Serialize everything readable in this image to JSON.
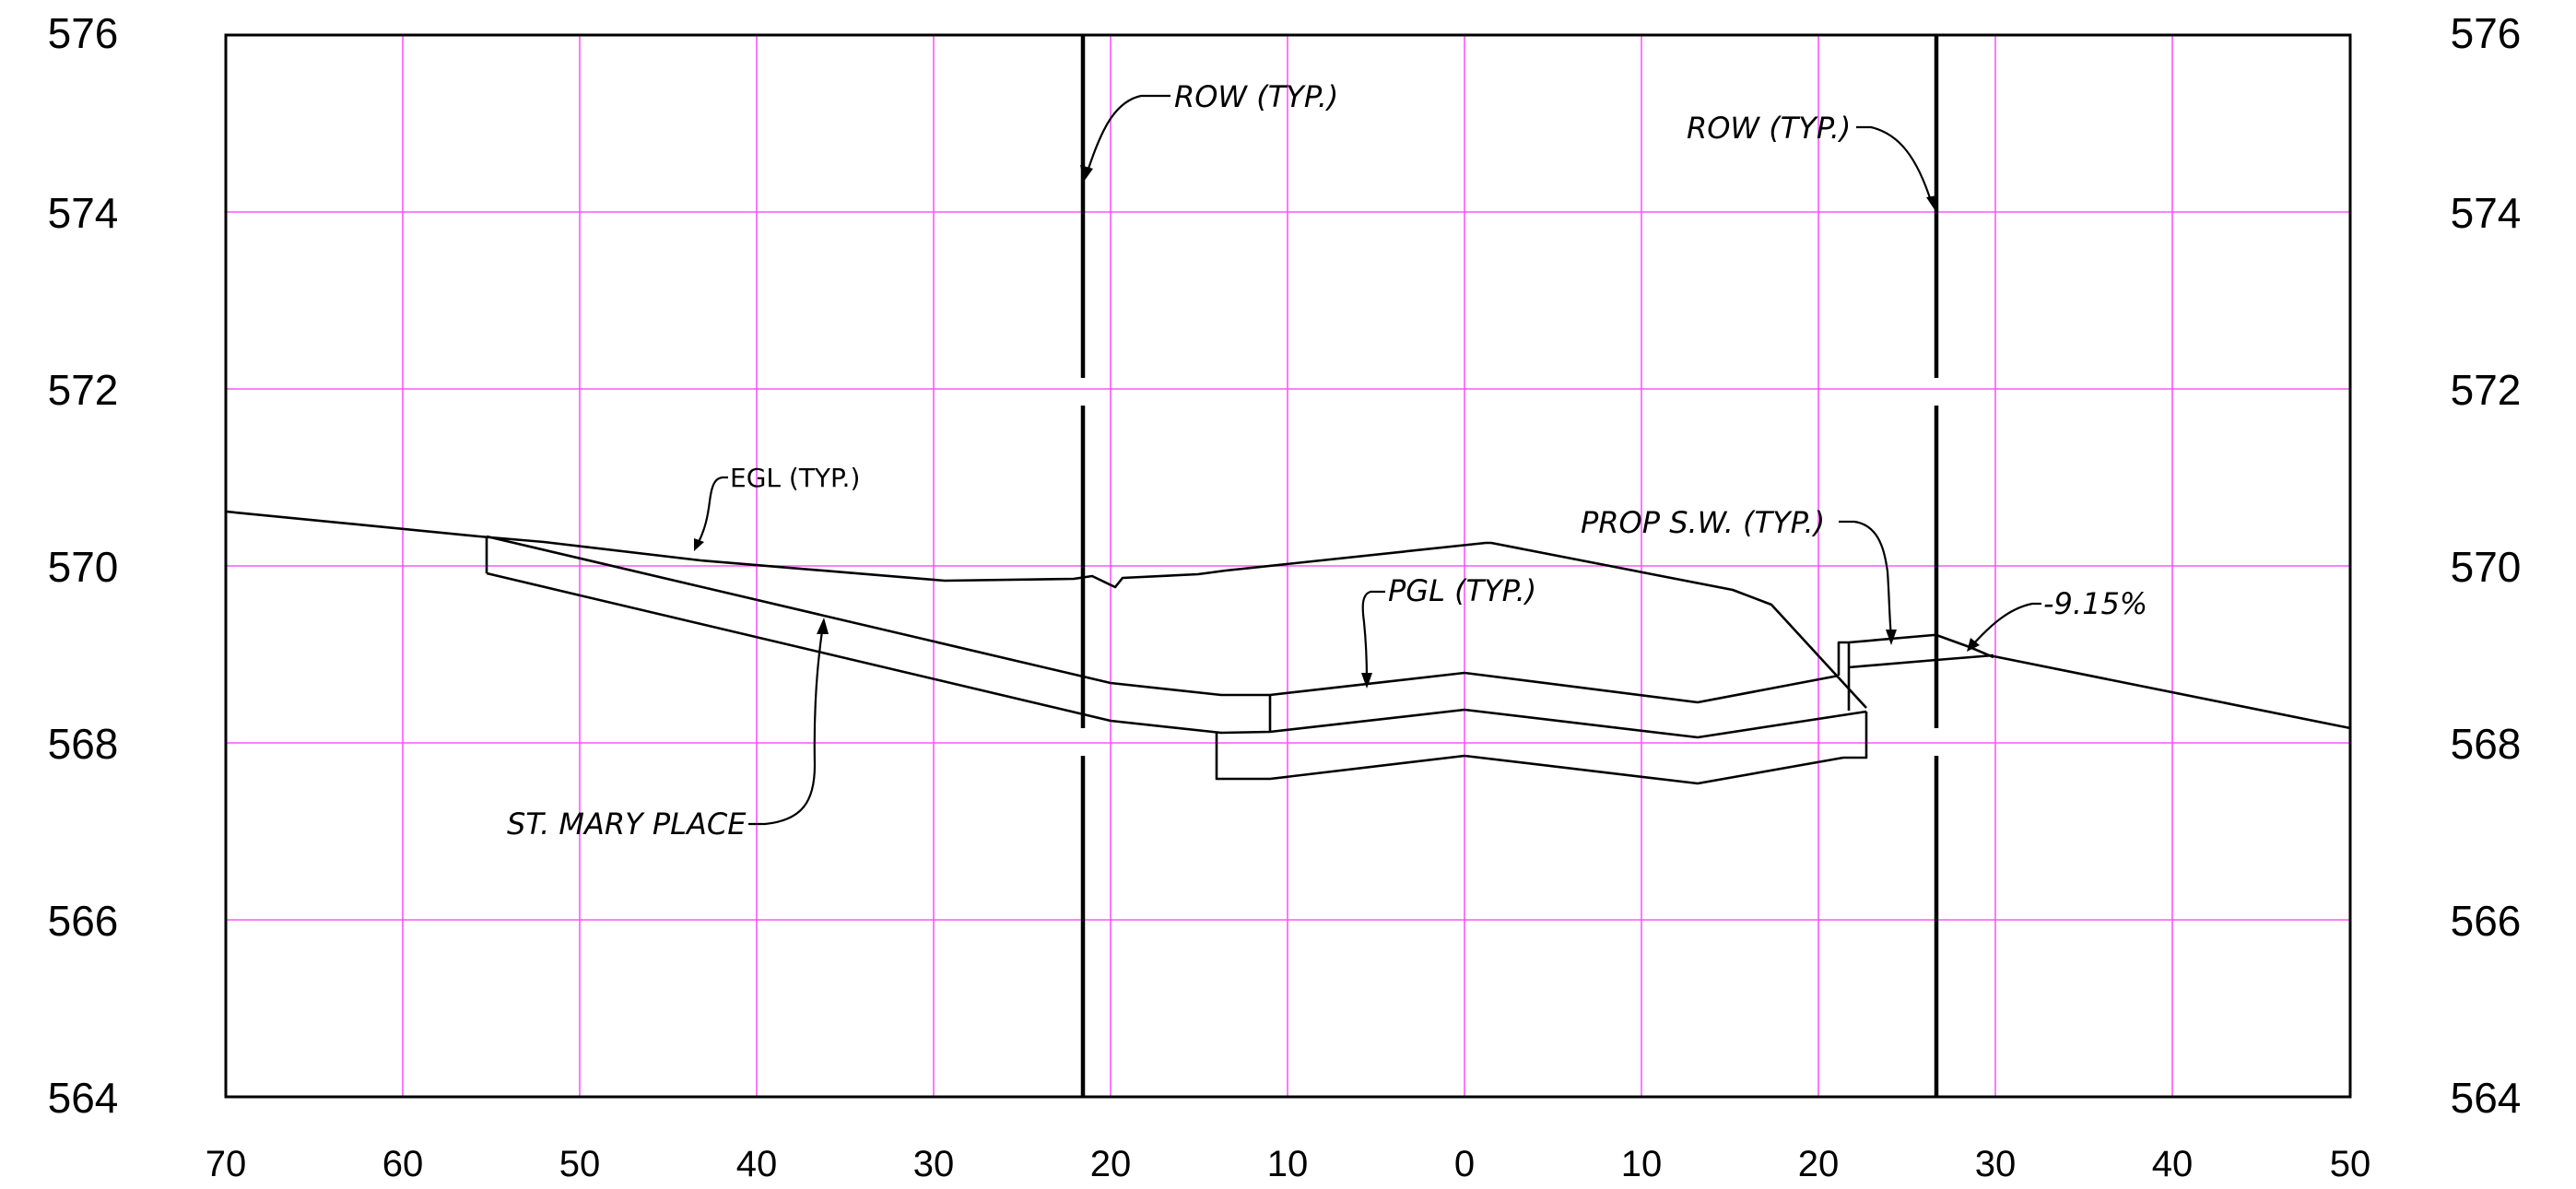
{
  "axes": {
    "y_ticks_left": [
      "576",
      "574",
      "572",
      "570",
      "568",
      "566",
      "564"
    ],
    "y_ticks_right": [
      "576",
      "574",
      "572",
      "570",
      "568",
      "566",
      "564"
    ],
    "x_ticks": [
      "70",
      "60",
      "50",
      "40",
      "30",
      "20",
      "10",
      "0",
      "10",
      "20",
      "30",
      "40",
      "50"
    ]
  },
  "annotations": {
    "row_left": "ROW (TYP.)",
    "row_right": "ROW (TYP.)",
    "egl": "EGL (TYP.)",
    "pgl": "PGL (TYP.)",
    "prop_sw": "PROP S.W. (TYP.)",
    "slope": "-9.15%",
    "street": "ST. MARY PLACE"
  },
  "colors": {
    "grid": "#ff55ff",
    "linework": "#000000"
  }
}
